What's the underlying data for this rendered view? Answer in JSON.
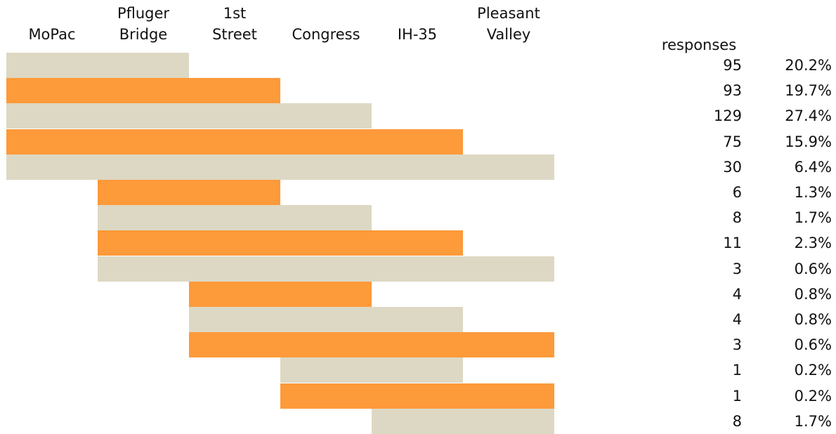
{
  "chart_data": {
    "type": "bar",
    "columns": [
      "MoPac",
      "Pfluger\nBridge",
      "1st\nStreet",
      "Congress",
      "IH-35",
      "Pleasant\nValley"
    ],
    "responses_header": "responses",
    "colors": {
      "odd": "#ddd8c4",
      "even": "#fd9a3a"
    },
    "rows": [
      {
        "from": 0,
        "to": 1,
        "responses": "95",
        "percent": "20.2%"
      },
      {
        "from": 0,
        "to": 2,
        "responses": "93",
        "percent": "19.7%"
      },
      {
        "from": 0,
        "to": 3,
        "responses": "129",
        "percent": "27.4%"
      },
      {
        "from": 0,
        "to": 4,
        "responses": "75",
        "percent": "15.9%"
      },
      {
        "from": 0,
        "to": 5,
        "responses": "30",
        "percent": "6.4%"
      },
      {
        "from": 1,
        "to": 2,
        "responses": "6",
        "percent": "1.3%"
      },
      {
        "from": 1,
        "to": 3,
        "responses": "8",
        "percent": "1.7%"
      },
      {
        "from": 1,
        "to": 4,
        "responses": "11",
        "percent": "2.3%"
      },
      {
        "from": 1,
        "to": 5,
        "responses": "3",
        "percent": "0.6%"
      },
      {
        "from": 2,
        "to": 3,
        "responses": "4",
        "percent": "0.8%"
      },
      {
        "from": 2,
        "to": 4,
        "responses": "4",
        "percent": "0.8%"
      },
      {
        "from": 2,
        "to": 5,
        "responses": "3",
        "percent": "0.6%"
      },
      {
        "from": 3,
        "to": 4,
        "responses": "1",
        "percent": "0.2%"
      },
      {
        "from": 3,
        "to": 5,
        "responses": "1",
        "percent": "0.2%"
      },
      {
        "from": 4,
        "to": 5,
        "responses": "8",
        "percent": "1.7%"
      }
    ]
  }
}
